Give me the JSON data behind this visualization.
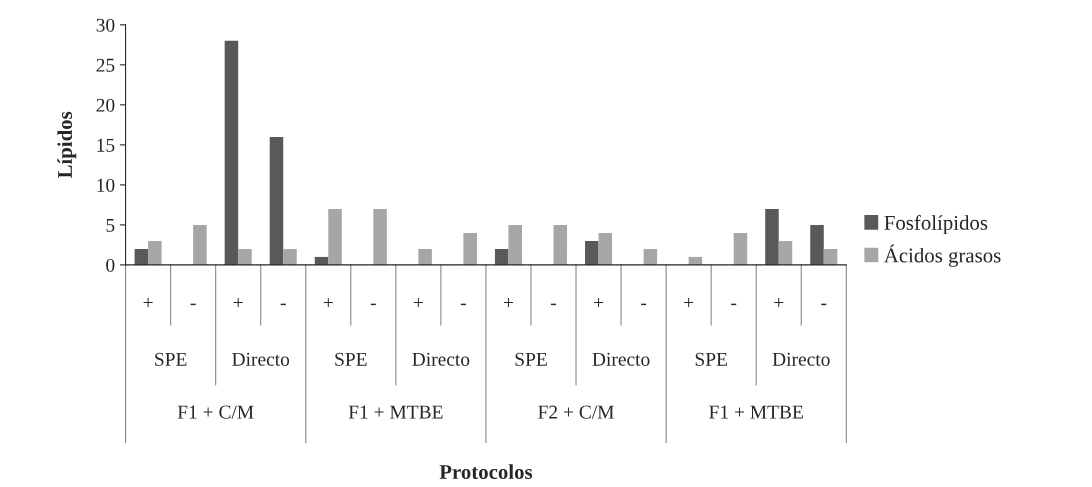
{
  "chart_data": {
    "type": "bar",
    "ylabel": "Lípidos",
    "categories": [
      "+",
      "-",
      "+",
      "-",
      "+",
      "-",
      "+",
      "-",
      "+",
      "-",
      "+",
      "-",
      "+",
      "-",
      "+",
      "-"
    ],
    "series": [
      {
        "name": "Fosfolípidos",
        "color": "#595959",
        "values": [
          2,
          0,
          28,
          16,
          1,
          0,
          0,
          0,
          2,
          0,
          3,
          0,
          0,
          0,
          7,
          5
        ]
      },
      {
        "name": "Ácidos grasos",
        "color": "#a6a6a6",
        "values": [
          3,
          5,
          2,
          2,
          7,
          7,
          2,
          4,
          5,
          5,
          4,
          2,
          1,
          4,
          3,
          2
        ]
      }
    ],
    "annotations": [
      "SPE",
      "Directo",
      "SPE",
      "Directo",
      "SPE",
      "Directo",
      "SPE",
      "Directo",
      "F1 + C/M",
      "F1 + MTBE",
      "F2 + C/M",
      "F1 + MTBE",
      "Protocolos"
    ],
    "ylim": [
      0,
      30
    ],
    "yticks": [
      0,
      5,
      10,
      15,
      20,
      25,
      30
    ],
    "grid": false,
    "legend": "right"
  }
}
